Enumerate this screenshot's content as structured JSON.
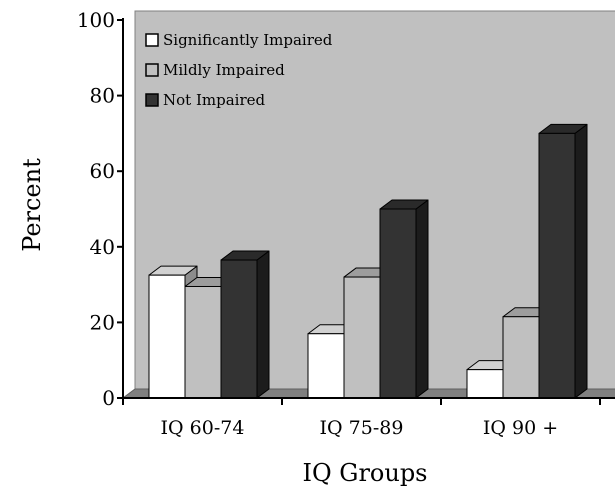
{
  "chart_data": {
    "type": "bar",
    "style": "3d-clustered-column",
    "title": "",
    "xlabel": "IQ Groups",
    "ylabel": "Percent",
    "ylim": [
      0,
      100
    ],
    "yticks": [
      0,
      20,
      40,
      60,
      80,
      100
    ],
    "grid": false,
    "legend_position": "top-left",
    "categories": [
      "IQ 60-74",
      "IQ 75-89",
      "IQ 90 +"
    ],
    "series": [
      {
        "name": "Significantly Impaired",
        "color": "#ffffff",
        "values": [
          32.5,
          17,
          7.5
        ]
      },
      {
        "name": "Mildly Impaired",
        "color": "#c0c0c0",
        "values": [
          29.5,
          32,
          21.5
        ]
      },
      {
        "name": "Not Impaired",
        "color": "#333333",
        "values": [
          36.5,
          50,
          70
        ]
      }
    ],
    "colors": {
      "wall": "#c0c0c0",
      "floor": "#808080",
      "axis": "#000000"
    }
  }
}
